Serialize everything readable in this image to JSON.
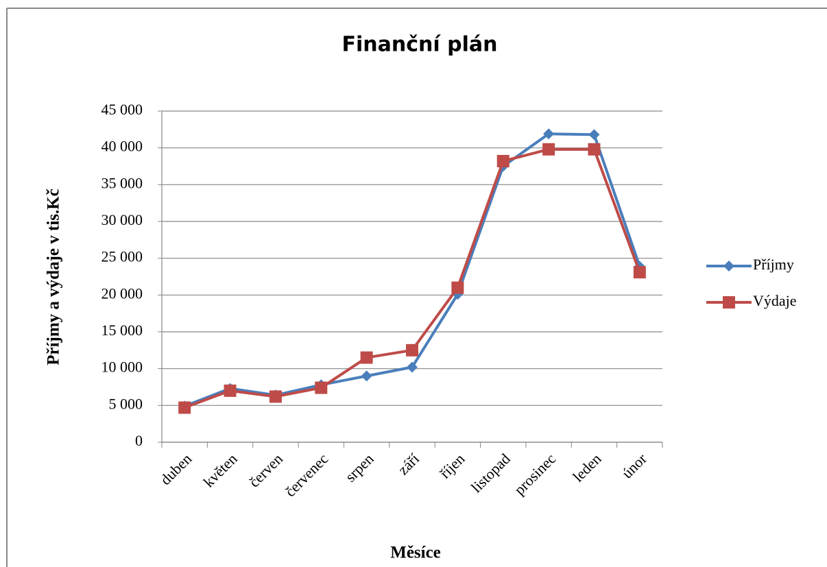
{
  "chart_data": {
    "type": "line",
    "title": "Finanční plán",
    "x_label": "Měsíce",
    "y_label": "Příjmy a výdaje v tis.Kč",
    "categories": [
      "duben",
      "květen",
      "červen",
      "červenec",
      "srpen",
      "září",
      "říjen",
      "listopad",
      "prosinec",
      "leden",
      "únor"
    ],
    "series": [
      {
        "name": "Příjmy",
        "color": "#4a7ebb",
        "marker": "diamond",
        "values": [
          4900,
          7300,
          6400,
          7800,
          9000,
          10200,
          20100,
          37500,
          41900,
          41800,
          23900
        ]
      },
      {
        "name": "Výdaje",
        "color": "#be4b48",
        "marker": "square",
        "values": [
          4700,
          7000,
          6200,
          7400,
          11500,
          12500,
          21000,
          38200,
          39800,
          39800,
          23100
        ]
      }
    ],
    "ylim": [
      0,
      45000
    ],
    "yticks": [
      0,
      {
        "value": 5000,
        "label": "5 000"
      },
      {
        "value": 10000,
        "label": "10 000"
      },
      {
        "value": 15000,
        "label": "15 000"
      },
      {
        "value": 20000,
        "label": "20 000"
      },
      {
        "value": 25000,
        "label": "25 000"
      },
      {
        "value": 30000,
        "label": "30 000"
      },
      {
        "value": 35000,
        "label": "35 000"
      },
      {
        "value": 40000,
        "label": "40 000"
      },
      {
        "value": 45000,
        "label": "45 000"
      }
    ],
    "grid": true,
    "legend": "right"
  }
}
